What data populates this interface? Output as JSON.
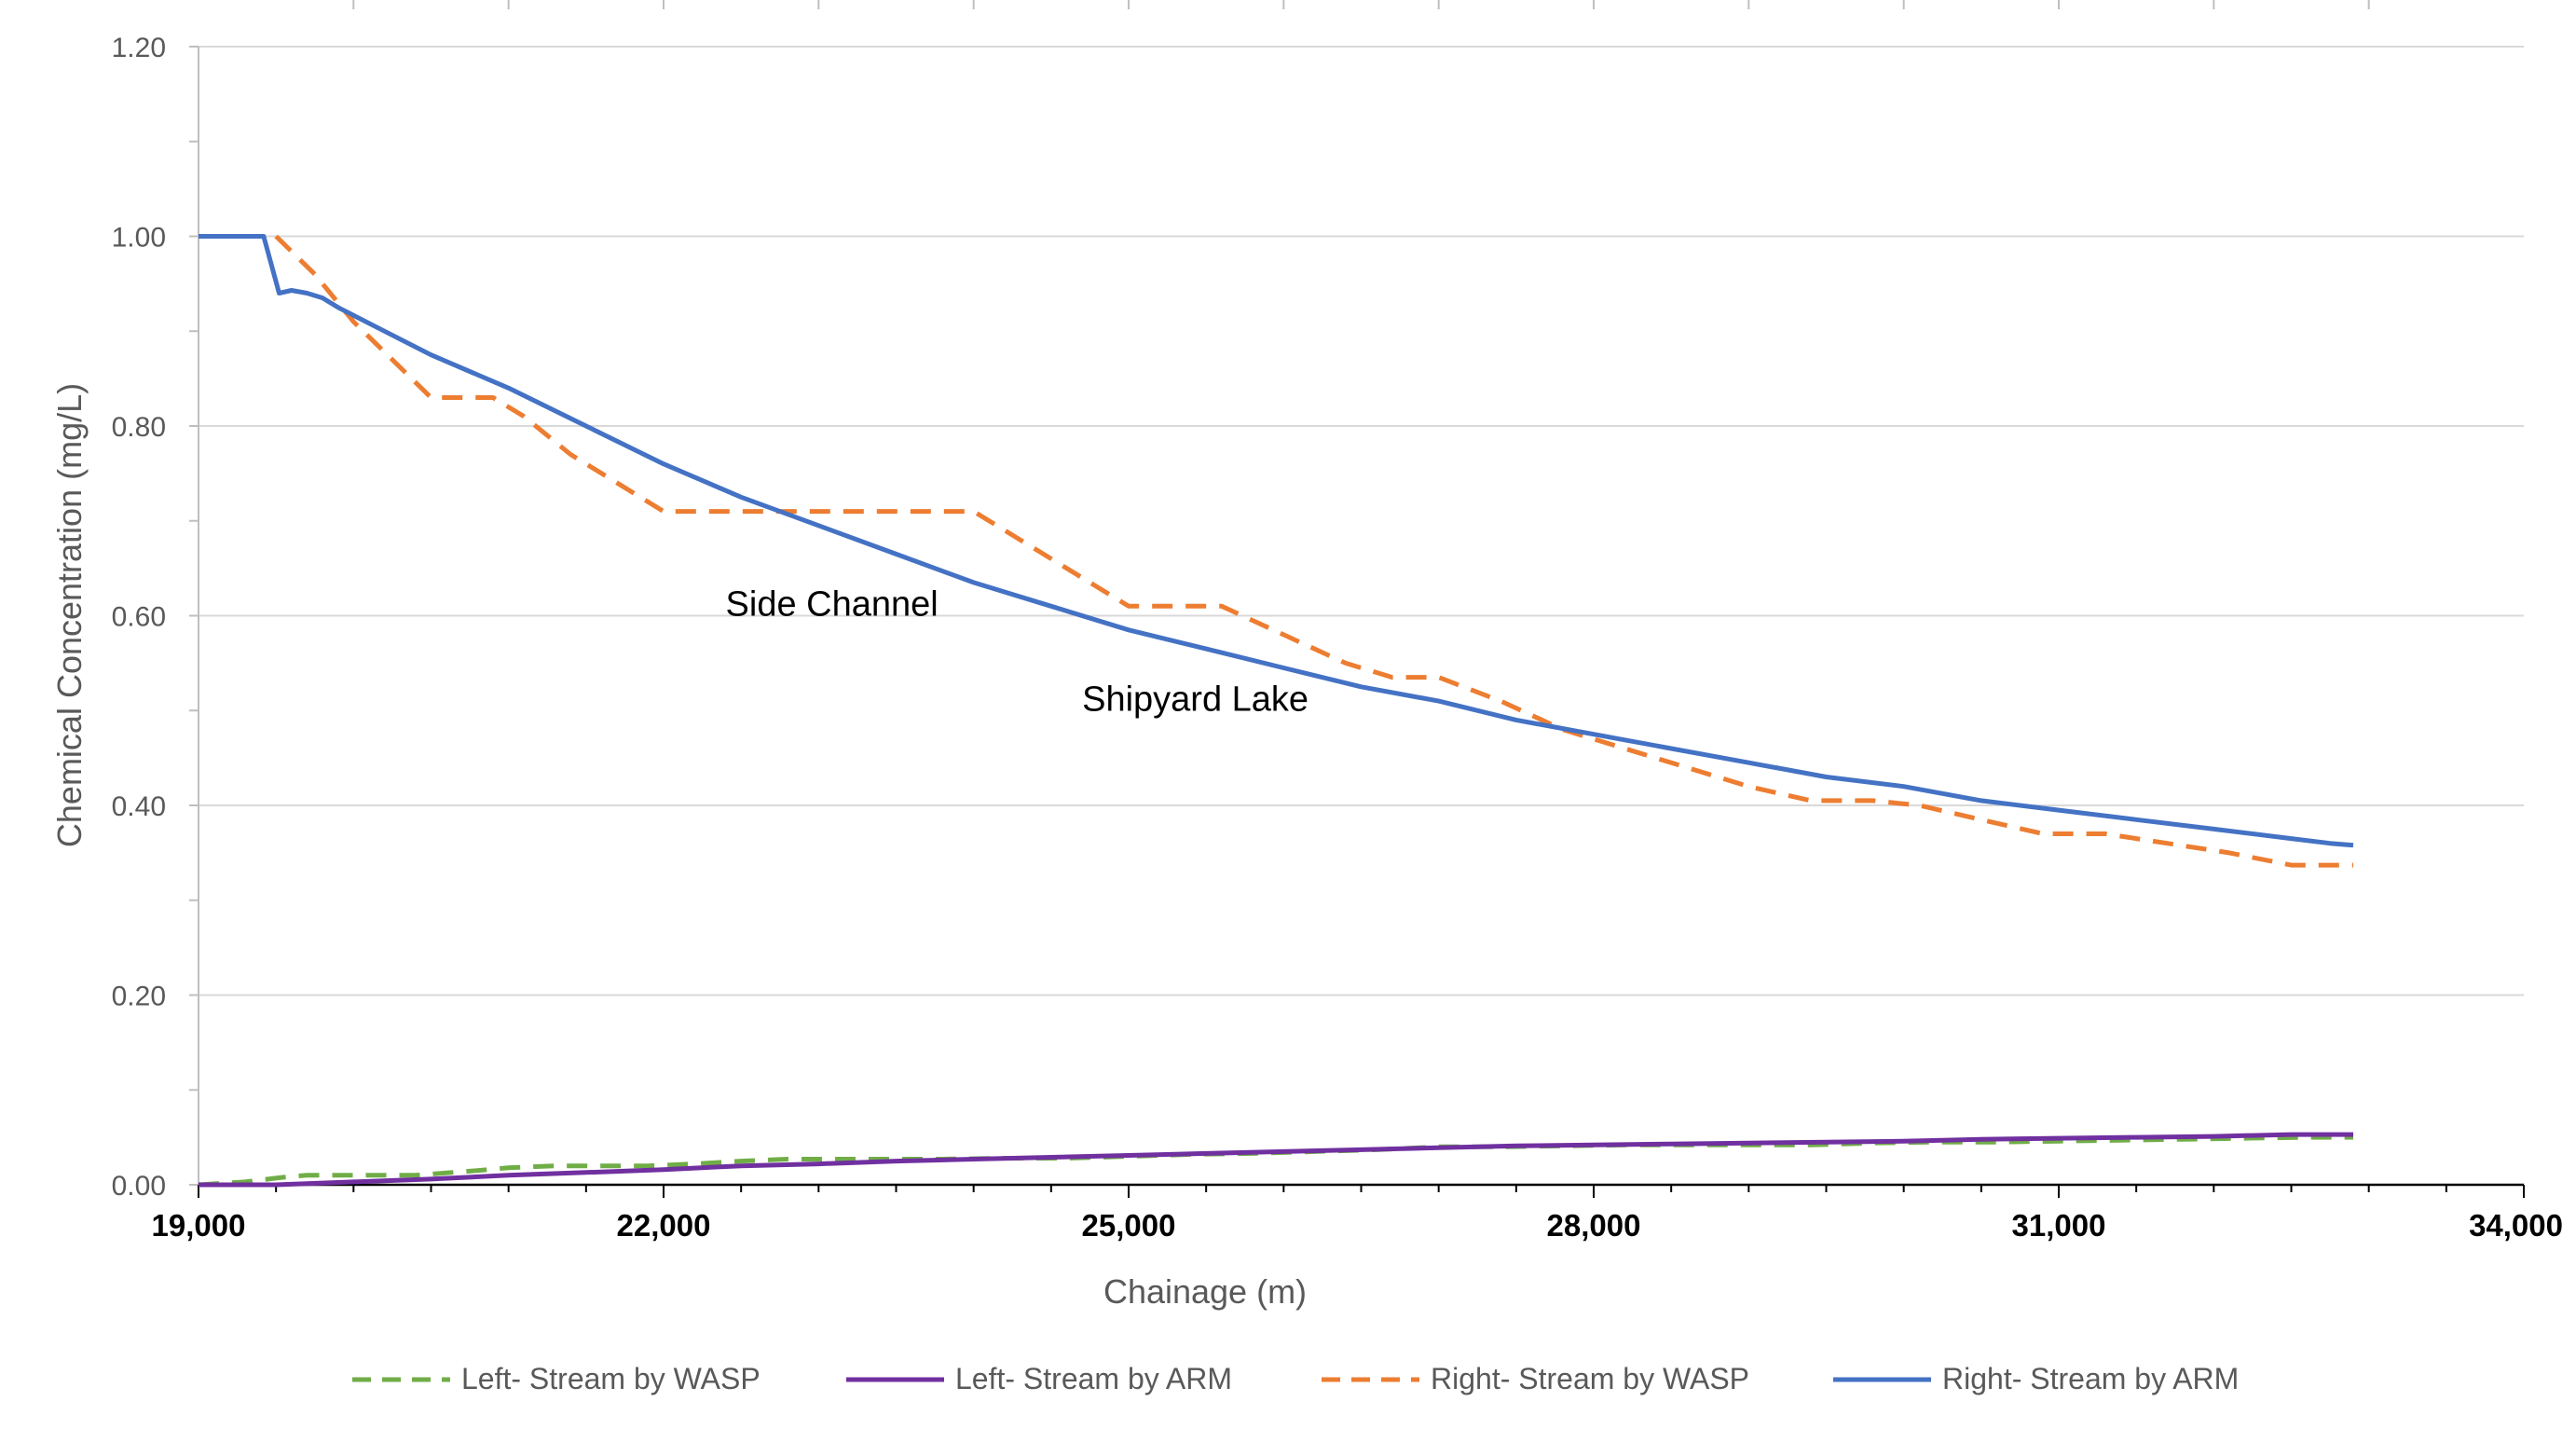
{
  "chart_data": {
    "type": "line",
    "title": "",
    "xlabel": "Chainage (m)",
    "ylabel": "Chemical Concentration (mg/L)",
    "xlim": [
      19000,
      34000
    ],
    "ylim": [
      0,
      1.2
    ],
    "grid": true,
    "legend_position": "bottom",
    "x_ticks": [
      19000,
      22000,
      25000,
      28000,
      31000,
      34000
    ],
    "x_tick_labels": [
      "19,000",
      "22,000",
      "25,000",
      "28,000",
      "31,000",
      "34,000"
    ],
    "y_ticks": [
      0,
      0.2,
      0.4,
      0.6,
      0.8,
      1.0,
      1.2
    ],
    "y_tick_labels": [
      "0.00",
      "0.20",
      "0.40",
      "0.60",
      "0.80",
      "1.00",
      "1.20"
    ],
    "annotations": [
      {
        "text": "Side Channel",
        "x": 22400,
        "y": 0.6
      },
      {
        "text": "Shipyard Lake",
        "x": 24700,
        "y": 0.5
      }
    ],
    "series": [
      {
        "name": "Left- Stream by WASP",
        "color": "#70AD47",
        "style": "dashed",
        "x": [
          19000,
          19300,
          19550,
          19700,
          20000,
          20400,
          20800,
          21000,
          21300,
          21600,
          21900,
          22200,
          22500,
          22800,
          23000,
          23400,
          23800,
          24200,
          24600,
          25000,
          25400,
          25800,
          26200,
          26600,
          27000,
          27400,
          27800,
          28200,
          28600,
          29000,
          29400,
          29800,
          30200,
          30600,
          31000,
          31400,
          31800,
          32200,
          32600,
          32900
        ],
        "y": [
          0.0,
          0.003,
          0.008,
          0.01,
          0.01,
          0.01,
          0.015,
          0.018,
          0.02,
          0.02,
          0.02,
          0.022,
          0.025,
          0.027,
          0.027,
          0.027,
          0.027,
          0.028,
          0.028,
          0.03,
          0.032,
          0.033,
          0.035,
          0.037,
          0.04,
          0.04,
          0.041,
          0.042,
          0.042,
          0.042,
          0.042,
          0.044,
          0.045,
          0.045,
          0.046,
          0.047,
          0.048,
          0.049,
          0.05,
          0.05
        ]
      },
      {
        "name": "Left- Stream by ARM",
        "color": "#7030A0",
        "style": "solid",
        "x": [
          19000,
          19500,
          20000,
          20500,
          21000,
          21500,
          22000,
          22500,
          23000,
          23500,
          24000,
          24500,
          25000,
          25500,
          26000,
          26500,
          27000,
          27500,
          28000,
          28500,
          29000,
          29500,
          30000,
          30500,
          31000,
          31500,
          32000,
          32500,
          32900
        ],
        "y": [
          0.0,
          0.0,
          0.003,
          0.006,
          0.01,
          0.013,
          0.016,
          0.02,
          0.022,
          0.025,
          0.027,
          0.029,
          0.031,
          0.033,
          0.035,
          0.037,
          0.039,
          0.041,
          0.042,
          0.043,
          0.044,
          0.045,
          0.046,
          0.048,
          0.049,
          0.05,
          0.051,
          0.053,
          0.053
        ]
      },
      {
        "name": "Right- Stream by WASP",
        "color": "#ED7D31",
        "style": "dashed",
        "x": [
          19500,
          19750,
          20000,
          20250,
          20500,
          20900,
          21100,
          21400,
          21800,
          22000,
          22300,
          22700,
          23000,
          23500,
          24000,
          24500,
          25000,
          25200,
          25600,
          26000,
          26400,
          26700,
          27000,
          27400,
          27800,
          28200,
          28600,
          29000,
          29400,
          29800,
          30100,
          30500,
          30900,
          31300,
          31700,
          32100,
          32500,
          32900
        ],
        "y": [
          1.0,
          0.96,
          0.91,
          0.87,
          0.83,
          0.83,
          0.81,
          0.77,
          0.73,
          0.71,
          0.71,
          0.71,
          0.71,
          0.71,
          0.71,
          0.66,
          0.61,
          0.61,
          0.61,
          0.58,
          0.55,
          0.535,
          0.535,
          0.51,
          0.48,
          0.46,
          0.44,
          0.42,
          0.405,
          0.405,
          0.4,
          0.385,
          0.37,
          0.37,
          0.36,
          0.35,
          0.337,
          0.337
        ]
      },
      {
        "name": "Right- Stream by ARM",
        "color": "#4472C4",
        "style": "solid",
        "x": [
          19000,
          19420,
          19520,
          19600,
          19700,
          19800,
          19900,
          20200,
          20500,
          21000,
          21500,
          22000,
          22500,
          23000,
          23500,
          24000,
          24500,
          25000,
          25500,
          26000,
          26500,
          27000,
          27500,
          28000,
          28500,
          29000,
          29500,
          30000,
          30500,
          31000,
          31500,
          32000,
          32500,
          32750,
          32900
        ],
        "y": [
          1.0,
          1.0,
          0.94,
          0.943,
          0.94,
          0.935,
          0.925,
          0.9,
          0.875,
          0.84,
          0.8,
          0.76,
          0.725,
          0.695,
          0.665,
          0.635,
          0.61,
          0.585,
          0.565,
          0.545,
          0.525,
          0.51,
          0.49,
          0.475,
          0.46,
          0.445,
          0.43,
          0.42,
          0.405,
          0.395,
          0.385,
          0.375,
          0.365,
          0.36,
          0.358
        ]
      }
    ]
  }
}
